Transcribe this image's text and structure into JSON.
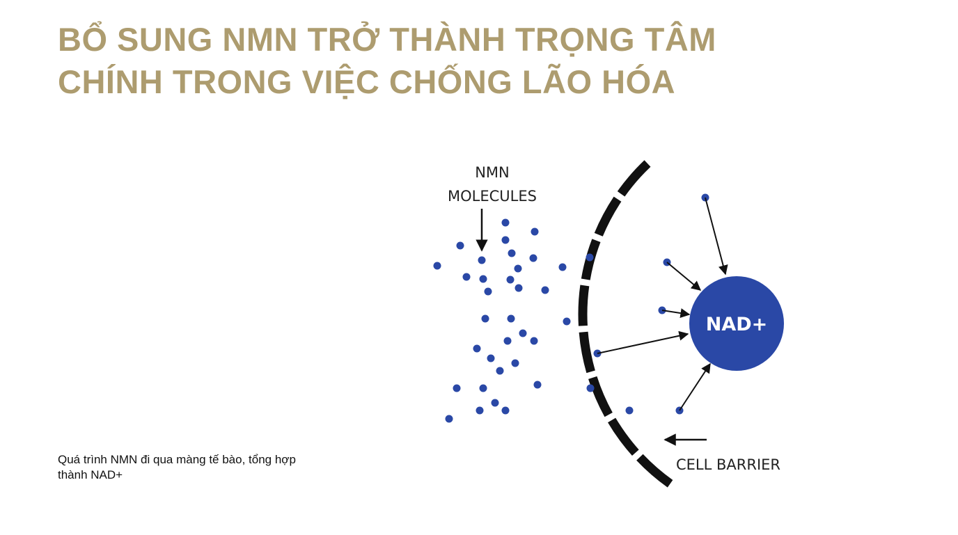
{
  "title": {
    "lines": [
      "BỔ SUNG NMN TRỞ THÀNH TRỌNG TÂM",
      "CHÍNH TRONG VIỆC CHỐNG LÃO HÓA"
    ]
  },
  "diagram": {
    "molecules_label": [
      "NMN",
      "MOLECULES"
    ],
    "nad_label": "NAD+",
    "barrier_label": "CELL BARRIER"
  },
  "caption": {
    "lines": [
      "Quá trình NMN đi qua màng tế bào, tổng hợp",
      "thành NAD+"
    ]
  }
}
